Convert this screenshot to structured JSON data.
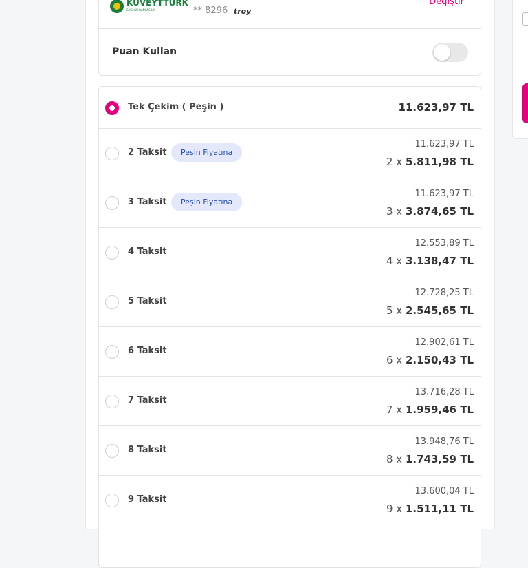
{
  "card": {
    "bank_name": "KUVEYTTÜRK",
    "bank_slogan": "SAĞLAM BANKACILIK",
    "number": "** 8296",
    "network": "troy",
    "change": "Değiştir"
  },
  "points": {
    "label": "Puan Kullan"
  },
  "options": [
    {
      "label": "Tek Çekim ( Peşin )",
      "total": "11.623,97 TL"
    },
    {
      "label": "2 Taksit",
      "badge": "Peşin Fiyatına",
      "total": "11.623,97 TL",
      "count": "2 x",
      "monthly": "5.811,98 TL"
    },
    {
      "label": "3 Taksit",
      "badge": "Peşin Fiyatına",
      "total": "11.623,97 TL",
      "count": "3 x",
      "monthly": "3.874,65 TL"
    },
    {
      "label": "4 Taksit",
      "total": "12.553,89 TL",
      "count": "4 x",
      "monthly": "3.138,47 TL"
    },
    {
      "label": "5 Taksit",
      "total": "12.728,25 TL",
      "count": "5 x",
      "monthly": "2.545,65 TL"
    },
    {
      "label": "6 Taksit",
      "total": "12.902,61 TL",
      "count": "6 x",
      "monthly": "2.150,43 TL"
    },
    {
      "label": "7 Taksit",
      "total": "13.716,28 TL",
      "count": "7 x",
      "monthly": "1.959,46 TL"
    },
    {
      "label": "8 Taksit",
      "total": "13.948,76 TL",
      "count": "8 x",
      "monthly": "1.743,59 TL"
    },
    {
      "label": "9 Taksit",
      "total": "13.600,04 TL",
      "count": "9 x",
      "monthly": "1.511,11 TL"
    }
  ]
}
